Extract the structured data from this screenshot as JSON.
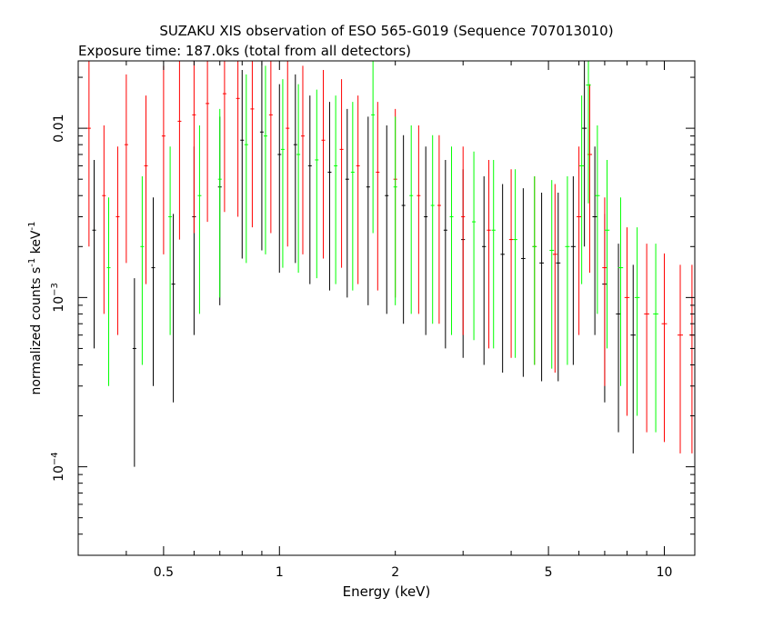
{
  "chart_data": {
    "type": "scatter",
    "title": "SUZAKU XIS observation of ESO 565-G019 (Sequence 707013010)",
    "subtitle": "Exposure time: 187.0ks (total from all detectors)",
    "xlabel": "Energy (keV)",
    "ylabel_main": "normalized counts s",
    "ylabel_sup1": "-1",
    "ylabel_mid": " keV",
    "ylabel_sup2": "-1",
    "x_scale": "log",
    "y_scale": "log",
    "xlim": [
      0.3,
      12.0
    ],
    "ylim": [
      3e-05,
      0.025
    ],
    "x_ticks": [
      {
        "value": 0.5,
        "label": "0.5"
      },
      {
        "value": 1,
        "label": "1"
      },
      {
        "value": 2,
        "label": "2"
      },
      {
        "value": 5,
        "label": "5"
      },
      {
        "value": 10,
        "label": "10"
      }
    ],
    "y_ticks": [
      {
        "value": 0.0001,
        "base": "10",
        "exp": "−4"
      },
      {
        "value": 0.001,
        "base": "10",
        "exp": "−3"
      },
      {
        "value": 0.01,
        "label": "0.01"
      }
    ],
    "grid": false,
    "series": [
      {
        "color": "#000000",
        "points": [
          [
            0.33,
            0.0025
          ],
          [
            0.42,
            0.0005
          ],
          [
            0.47,
            0.0015
          ],
          [
            0.53,
            0.0012
          ],
          [
            0.6,
            0.003
          ],
          [
            0.7,
            0.0045
          ],
          [
            0.8,
            0.0085
          ],
          [
            0.9,
            0.0095
          ],
          [
            1.0,
            0.007
          ],
          [
            1.1,
            0.008
          ],
          [
            1.2,
            0.006
          ],
          [
            1.35,
            0.0055
          ],
          [
            1.5,
            0.005
          ],
          [
            1.7,
            0.0045
          ],
          [
            1.9,
            0.004
          ],
          [
            2.1,
            0.0035
          ],
          [
            2.4,
            0.003
          ],
          [
            2.7,
            0.0025
          ],
          [
            3.0,
            0.0022
          ],
          [
            3.4,
            0.002
          ],
          [
            3.8,
            0.0018
          ],
          [
            4.3,
            0.0017
          ],
          [
            4.8,
            0.0016
          ],
          [
            5.3,
            0.0016
          ],
          [
            5.8,
            0.002
          ],
          [
            6.2,
            0.01
          ],
          [
            6.6,
            0.003
          ],
          [
            7.0,
            0.0012
          ],
          [
            7.6,
            0.0008
          ],
          [
            8.3,
            0.0006
          ]
        ]
      },
      {
        "color": "#ff0000",
        "points": [
          [
            0.32,
            0.01
          ],
          [
            0.35,
            0.004
          ],
          [
            0.38,
            0.003
          ],
          [
            0.4,
            0.008
          ],
          [
            0.45,
            0.006
          ],
          [
            0.5,
            0.009
          ],
          [
            0.55,
            0.011
          ],
          [
            0.6,
            0.012
          ],
          [
            0.65,
            0.014
          ],
          [
            0.72,
            0.016
          ],
          [
            0.78,
            0.015
          ],
          [
            0.85,
            0.013
          ],
          [
            0.95,
            0.012
          ],
          [
            1.05,
            0.01
          ],
          [
            1.15,
            0.009
          ],
          [
            1.3,
            0.0085
          ],
          [
            1.45,
            0.0075
          ],
          [
            1.6,
            0.006
          ],
          [
            1.8,
            0.0055
          ],
          [
            2.0,
            0.005
          ],
          [
            2.3,
            0.004
          ],
          [
            2.6,
            0.0035
          ],
          [
            3.0,
            0.003
          ],
          [
            3.5,
            0.0025
          ],
          [
            4.0,
            0.0022
          ],
          [
            4.6,
            0.002
          ],
          [
            5.2,
            0.0018
          ],
          [
            6.0,
            0.003
          ],
          [
            6.4,
            0.007
          ],
          [
            7.0,
            0.0015
          ],
          [
            8.0,
            0.001
          ],
          [
            9.0,
            0.0008
          ],
          [
            10.0,
            0.0007
          ],
          [
            11.0,
            0.0006
          ],
          [
            11.8,
            0.0006
          ]
        ]
      },
      {
        "color": "#00ff00",
        "points": [
          [
            0.36,
            0.0015
          ],
          [
            0.44,
            0.002
          ],
          [
            0.52,
            0.003
          ],
          [
            0.62,
            0.004
          ],
          [
            0.7,
            0.005
          ],
          [
            0.82,
            0.008
          ],
          [
            0.92,
            0.009
          ],
          [
            1.02,
            0.0075
          ],
          [
            1.12,
            0.007
          ],
          [
            1.25,
            0.0065
          ],
          [
            1.4,
            0.006
          ],
          [
            1.55,
            0.0055
          ],
          [
            1.75,
            0.012
          ],
          [
            2.0,
            0.0045
          ],
          [
            2.2,
            0.004
          ],
          [
            2.5,
            0.0035
          ],
          [
            2.8,
            0.003
          ],
          [
            3.2,
            0.0028
          ],
          [
            3.6,
            0.0025
          ],
          [
            4.1,
            0.0022
          ],
          [
            4.6,
            0.002
          ],
          [
            5.1,
            0.0019
          ],
          [
            5.6,
            0.002
          ],
          [
            6.1,
            0.006
          ],
          [
            6.35,
            0.018
          ],
          [
            6.7,
            0.004
          ],
          [
            7.1,
            0.0025
          ],
          [
            7.7,
            0.0015
          ],
          [
            8.5,
            0.001
          ],
          [
            9.5,
            0.0008
          ]
        ]
      }
    ]
  }
}
